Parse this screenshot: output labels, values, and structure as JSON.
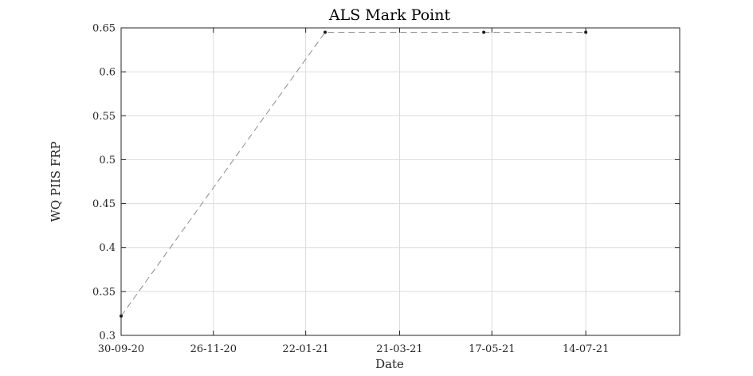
{
  "chart_data": {
    "type": "line",
    "title": "ALS Mark Point",
    "xlabel": "Date",
    "ylabel": "WQ PIIS FRP",
    "x_ticks": [
      "30-09-20",
      "26-11-20",
      "22-01-21",
      "21-03-21",
      "17-05-21",
      "14-07-21"
    ],
    "y_ticks": [
      "0.3",
      "0.35",
      "0.4",
      "0.45",
      "0.5",
      "0.55",
      "0.6",
      "0.65"
    ],
    "ylim": [
      0.3,
      0.65
    ],
    "xlim": [
      "30-09-20",
      "10-09-21"
    ],
    "grid": true,
    "series": [
      {
        "x": [
          "30-09-20",
          "03-02-21",
          "12-05-21",
          "14-07-21"
        ],
        "y": [
          0.322,
          0.645,
          0.645,
          0.645
        ],
        "color": "#8c8c8c",
        "marker_color": "#1a1a1a",
        "line_style": "dashed"
      }
    ]
  }
}
